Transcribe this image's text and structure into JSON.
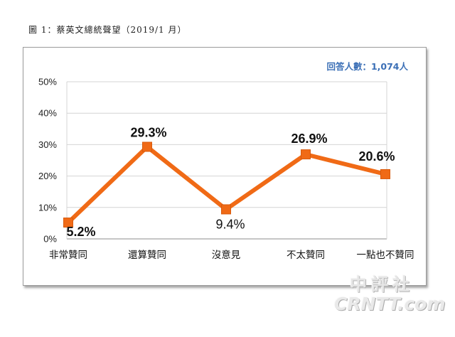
{
  "figure_title": "圖 1：蔡英文總統聲望（2019/1 月）",
  "respondents_label": "回答人數：1,074人",
  "chart_data": {
    "type": "line",
    "categories": [
      "非常贊同",
      "還算贊同",
      "沒意見",
      "不太贊同",
      "一點也不贊同"
    ],
    "values": [
      5.2,
      29.3,
      9.4,
      26.9,
      20.6
    ],
    "value_labels": [
      "5.2%",
      "29.3%",
      "9.4%",
      "26.9%",
      "20.6%"
    ],
    "ylim": [
      0,
      50
    ],
    "yticks": [
      0,
      10,
      20,
      30,
      40,
      50
    ],
    "ytick_labels": [
      "0%",
      "10%",
      "20%",
      "30%",
      "40%",
      "50%"
    ],
    "grid": true,
    "legend": "none",
    "color": "#f06a16",
    "marker": "square"
  },
  "watermark": {
    "chinese": "中評社",
    "english": "CRNTT.com"
  }
}
